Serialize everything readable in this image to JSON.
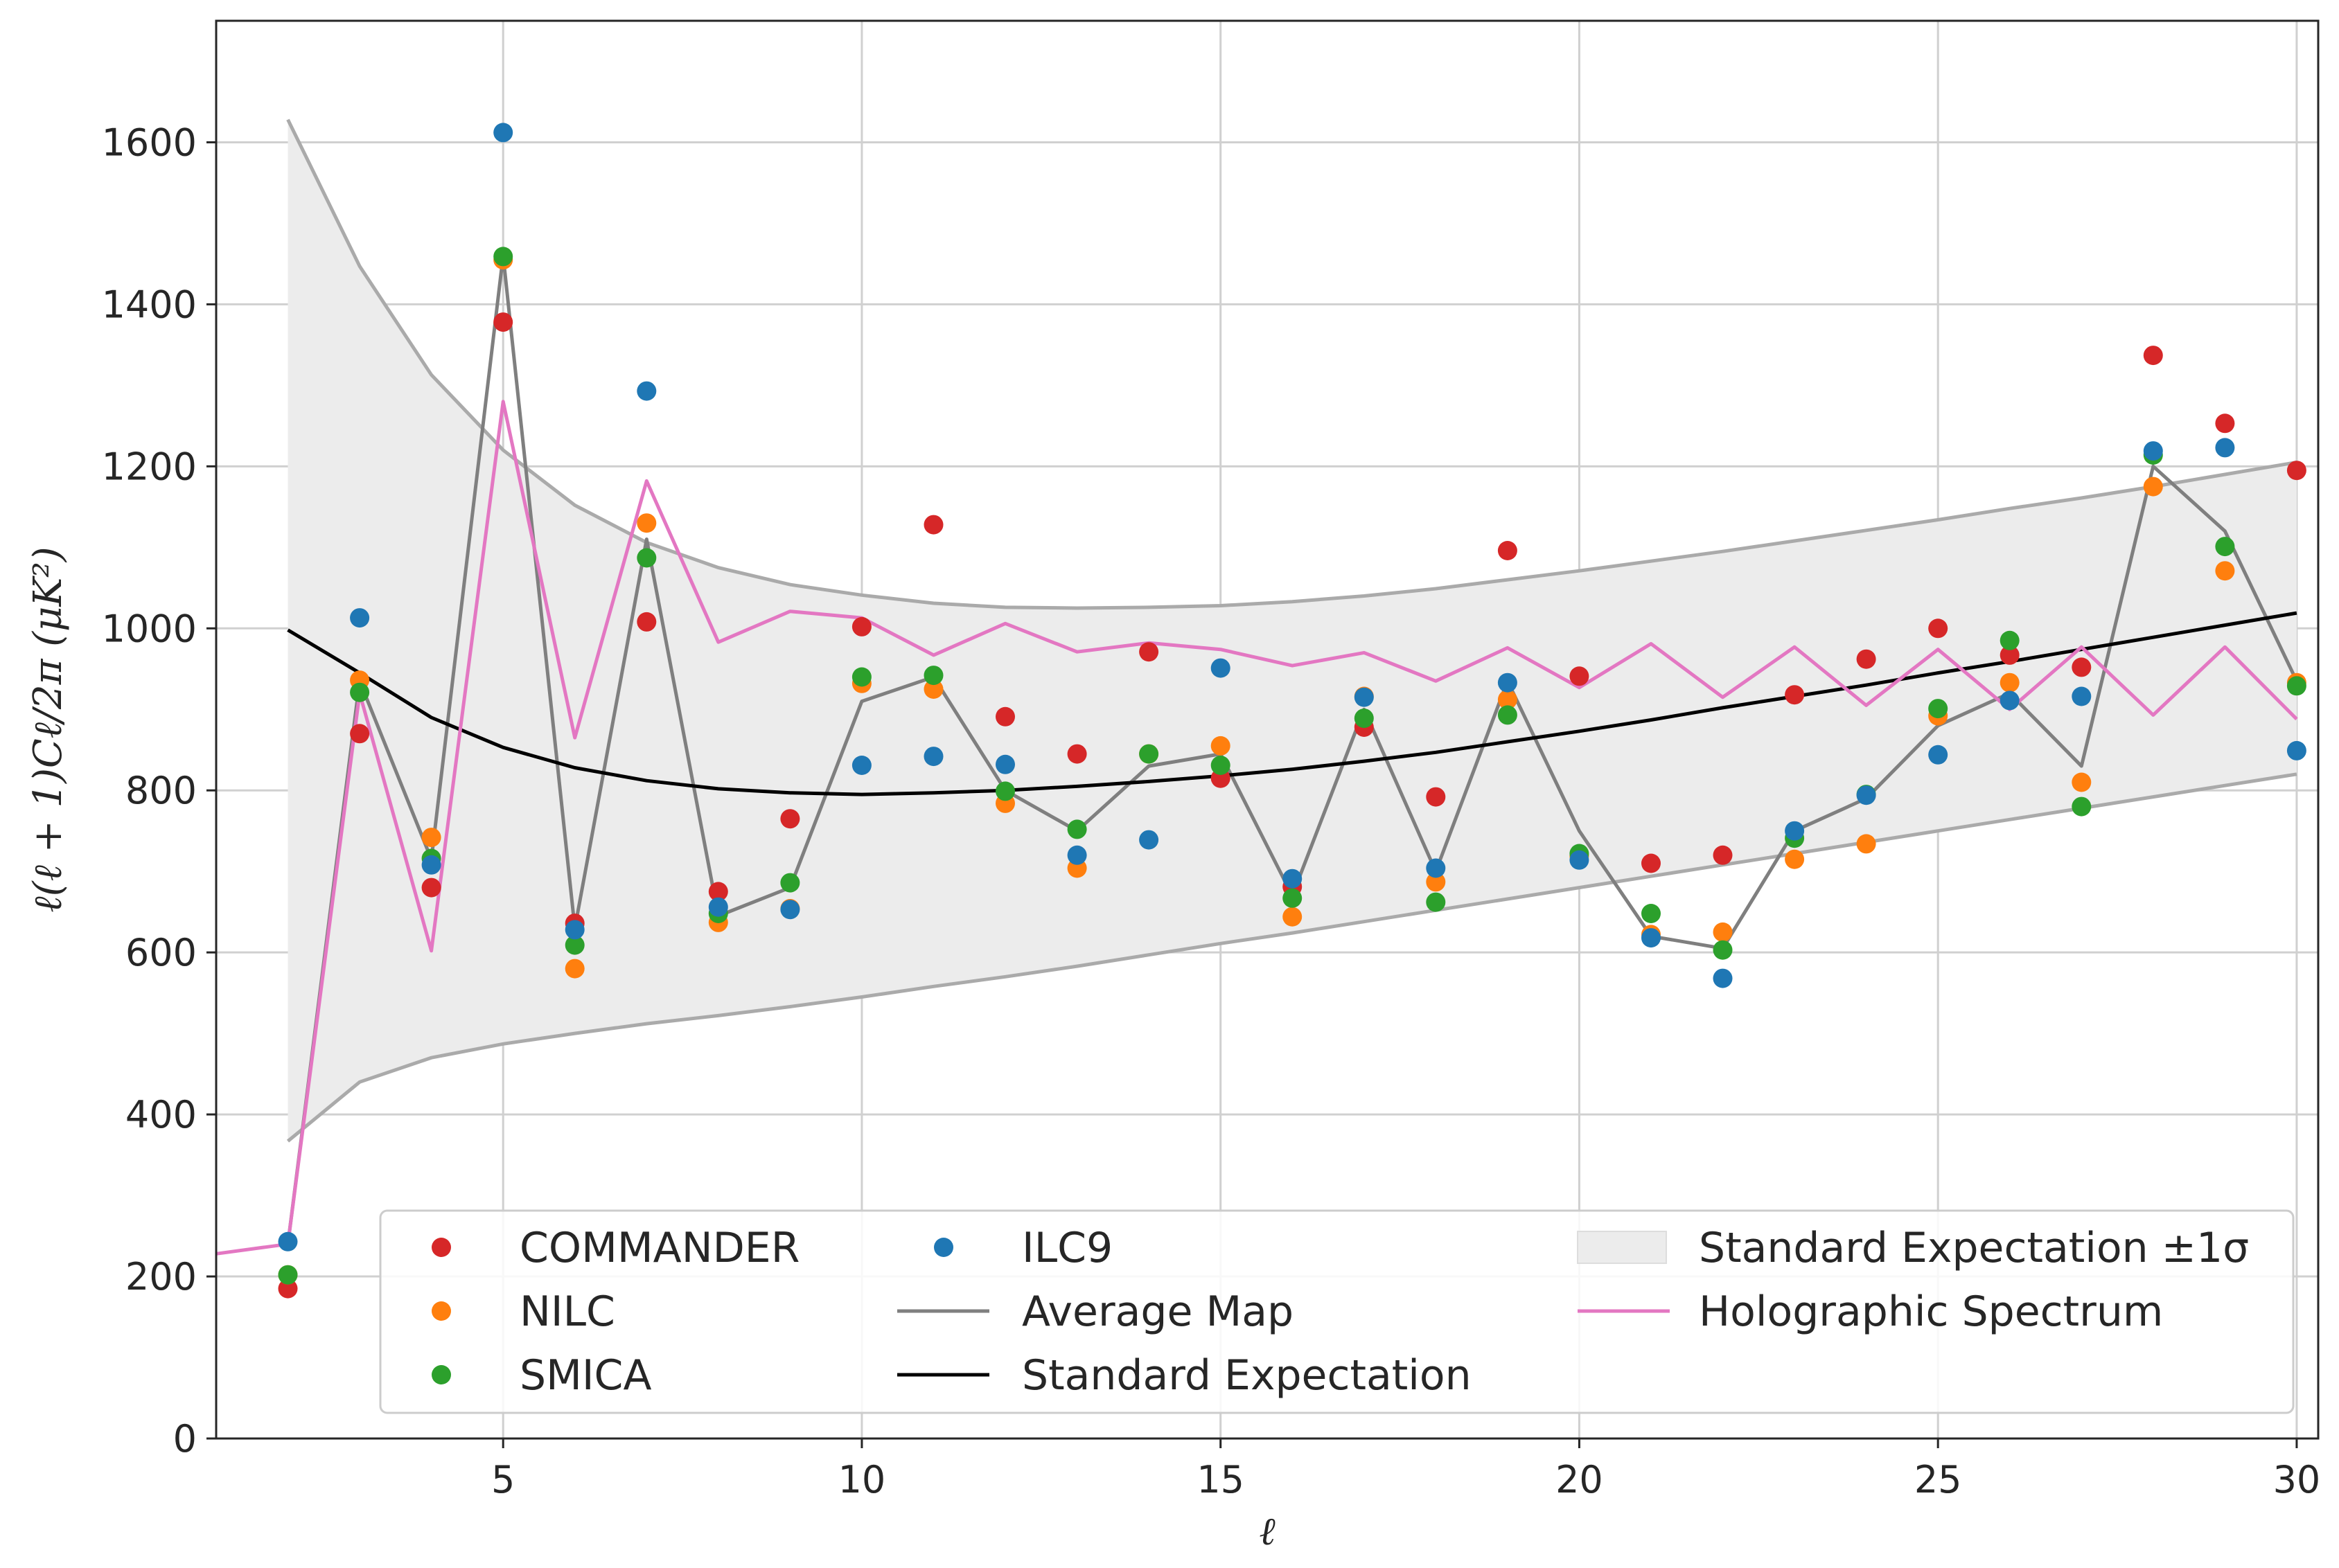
{
  "chart_data": {
    "type": "scatter",
    "xlabel": "ℓ",
    "ylabel": "ℓ(ℓ + 1)Cℓ/2π (μK²)",
    "xlim": [
      1,
      30.3
    ],
    "ylim": [
      0,
      1750
    ],
    "xticks": [
      5,
      10,
      15,
      20,
      25,
      30
    ],
    "yticks": [
      0,
      200,
      400,
      600,
      800,
      1000,
      1200,
      1400,
      1600
    ],
    "grid": true,
    "legend_position": "lower center",
    "ell": [
      2,
      3,
      4,
      5,
      6,
      7,
      8,
      9,
      10,
      11,
      12,
      13,
      14,
      15,
      16,
      17,
      18,
      19,
      20,
      21,
      22,
      23,
      24,
      25,
      26,
      27,
      28,
      29,
      30
    ],
    "scatter_series": [
      {
        "name": "COMMANDER",
        "color": "#d62728",
        "values": [
          185,
          870,
          680,
          1378,
          636,
          1008,
          675,
          765,
          1002,
          1128,
          891,
          845,
          971,
          815,
          681,
          878,
          792,
          1096,
          941,
          710,
          720,
          918,
          962,
          1000,
          967,
          952,
          1337,
          1253,
          1195
        ]
      },
      {
        "name": "NILC",
        "color": "#ff7f0e",
        "values": [
          202,
          936,
          742,
          1455,
          580,
          1130,
          637,
          654,
          932,
          925,
          784,
          704,
          845,
          855,
          644,
          916,
          687,
          912,
          719,
          622,
          625,
          715,
          734,
          892,
          933,
          810,
          1175,
          1071,
          933
        ]
      },
      {
        "name": "SMICA",
        "color": "#2ca02c",
        "values": [
          202,
          921,
          716,
          1459,
          609,
          1087,
          648,
          686,
          940,
          942,
          799,
          752,
          845,
          831,
          667,
          889,
          662,
          893,
          722,
          648,
          603,
          741,
          795,
          901,
          985,
          780,
          1214,
          1101,
          929
        ]
      },
      {
        "name": "ILC9",
        "color": "#1f77b4",
        "values": [
          243,
          1013,
          708,
          1612,
          628,
          1293,
          656,
          653,
          831,
          842,
          832,
          720,
          739,
          951,
          691,
          915,
          704,
          933,
          714,
          618,
          568,
          750,
          794,
          844,
          911,
          916,
          1219,
          1223,
          849
        ]
      }
    ],
    "line_series": [
      {
        "name": "Average Map",
        "color": "#7f7f7f",
        "x": [
          2,
          3,
          4,
          5,
          6,
          7,
          8,
          9,
          10,
          11,
          12,
          13,
          14,
          15,
          16,
          17,
          18,
          19,
          20,
          21,
          22,
          23,
          24,
          25,
          26,
          27,
          28,
          29,
          30
        ],
        "values": [
          240,
          935,
          715,
          1460,
          630,
          1110,
          645,
          680,
          910,
          940,
          800,
          750,
          830,
          845,
          670,
          900,
          700,
          935,
          750,
          620,
          605,
          750,
          790,
          880,
          920,
          830,
          1200,
          1120,
          935
        ]
      },
      {
        "name": "Standard Expectation",
        "color": "#000000",
        "x": [
          2,
          3,
          4,
          5,
          6,
          7,
          8,
          9,
          10,
          11,
          12,
          13,
          14,
          15,
          16,
          17,
          18,
          19,
          20,
          21,
          22,
          23,
          24,
          25,
          26,
          27,
          28,
          29,
          30
        ],
        "values": [
          998,
          945,
          890,
          853,
          828,
          812,
          802,
          797,
          795,
          797,
          800,
          805,
          811,
          818,
          826,
          836,
          847,
          860,
          873,
          887,
          902,
          916,
          930,
          945,
          959,
          974,
          989,
          1004,
          1019
        ]
      },
      {
        "name": "Holographic Spectrum",
        "color": "#e377c2",
        "x": [
          1,
          2,
          3,
          4,
          5,
          6,
          7,
          8,
          9,
          10,
          11,
          12,
          13,
          14,
          15,
          16,
          17,
          18,
          19,
          20,
          21,
          22,
          23,
          24,
          25,
          26,
          27,
          28,
          29,
          30
        ],
        "values": [
          228,
          240,
          920,
          602,
          1280,
          865,
          1182,
          983,
          1021,
          1013,
          967,
          1006,
          971,
          982,
          974,
          954,
          970,
          935,
          976,
          927,
          981,
          915,
          977,
          905,
          974,
          900,
          977,
          893,
          977,
          888
        ]
      }
    ],
    "band_series": {
      "name": "Standard Expectation ±1σ",
      "color": "#ececec",
      "x": [
        2,
        3,
        4,
        5,
        6,
        7,
        8,
        9,
        10,
        11,
        12,
        13,
        14,
        15,
        16,
        17,
        18,
        19,
        20,
        21,
        22,
        23,
        24,
        25,
        26,
        27,
        28,
        29,
        30
      ],
      "upper": [
        1628,
        1447,
        1313,
        1220,
        1152,
        1106,
        1075,
        1054,
        1041,
        1031,
        1026,
        1025,
        1026,
        1028,
        1033,
        1040,
        1049,
        1060,
        1071,
        1083,
        1095,
        1108,
        1121,
        1134,
        1148,
        1161,
        1175,
        1190,
        1205
      ],
      "lower": [
        367,
        440,
        470,
        487,
        500,
        512,
        522,
        533,
        545,
        558,
        570,
        583,
        597,
        611,
        624,
        638,
        652,
        666,
        680,
        694,
        708,
        722,
        736,
        750,
        764,
        778,
        792,
        806,
        820
      ]
    }
  }
}
